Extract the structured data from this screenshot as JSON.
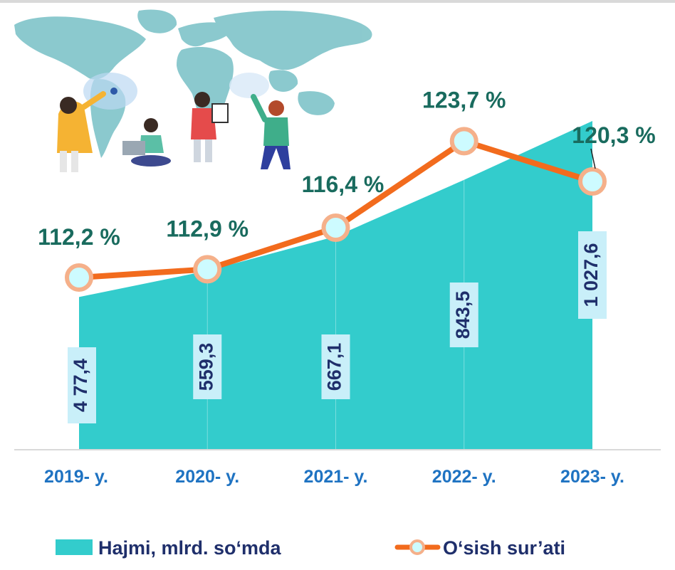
{
  "chart_data": {
    "type": "area+line",
    "categories": [
      "2019- y.",
      "2020- y.",
      "2021- y.",
      "2022- y.",
      "2023- y."
    ],
    "series": [
      {
        "name": "Hajmi, mlrd. so‘mda",
        "type": "area",
        "values": [
          477.4,
          559.3,
          667.1,
          843.5,
          1027.6
        ],
        "labels": [
          "4 77,4",
          "559,3",
          "667,1",
          "843,5",
          "1 027,6"
        ],
        "color": "#33cccc"
      },
      {
        "name": "O‘sish sur’ati",
        "type": "line",
        "values": [
          112.2,
          112.9,
          116.4,
          123.7,
          120.3
        ],
        "labels": [
          "112,2 %",
          "112,9 %",
          "116,4 %",
          "123,7 %",
          "120,3 %"
        ],
        "color": "#f26b1d"
      }
    ],
    "legend": {
      "position": "bottom",
      "items": [
        "Hajmi, mlrd. so‘mda",
        "O‘sish sur’ati"
      ]
    },
    "grid": false,
    "colors": {
      "area": "#33cccc",
      "line": "#f26b1d",
      "marker_fill": "#cdfbff",
      "marker_ring": "#f5b08a",
      "line_label": "#196b5e",
      "bar_label": "#1f2f6b",
      "bar_label_bg": "#c9eff9",
      "tick": "#1f73c2"
    }
  },
  "illustration": {
    "icon": "world-map-people-illustration"
  }
}
